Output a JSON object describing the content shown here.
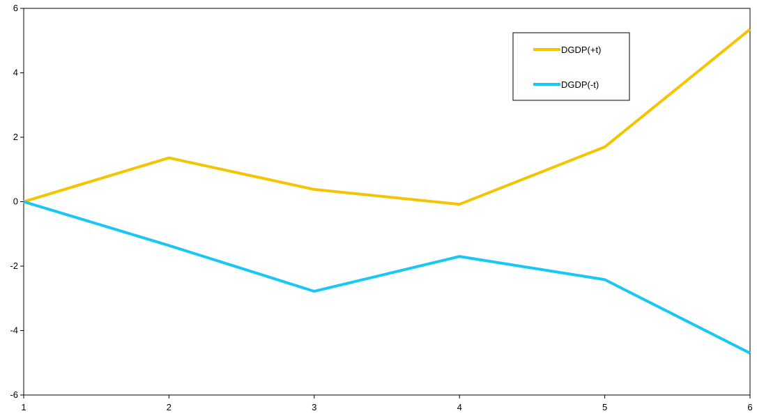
{
  "chart_data": {
    "type": "line",
    "title": "",
    "xlabel": "",
    "ylabel": "",
    "x": [
      1,
      2,
      3,
      4,
      5,
      6
    ],
    "xlim": [
      1,
      6
    ],
    "ylim": [
      -6,
      6
    ],
    "yticks": [
      -6,
      -4,
      -2,
      0,
      2,
      4,
      6
    ],
    "xticks": [
      1,
      2,
      3,
      4,
      5,
      6
    ],
    "grid": false,
    "legend_position": "top-right",
    "series": [
      {
        "name": "DGDP(+t)",
        "color": "#f5c400",
        "values": [
          0,
          1.36,
          0.38,
          -0.08,
          1.7,
          5.35
        ]
      },
      {
        "name": "DGDP(-t)",
        "color": "#17c7f5",
        "values": [
          0,
          -1.36,
          -2.78,
          -1.7,
          -2.42,
          -4.7
        ]
      }
    ]
  }
}
